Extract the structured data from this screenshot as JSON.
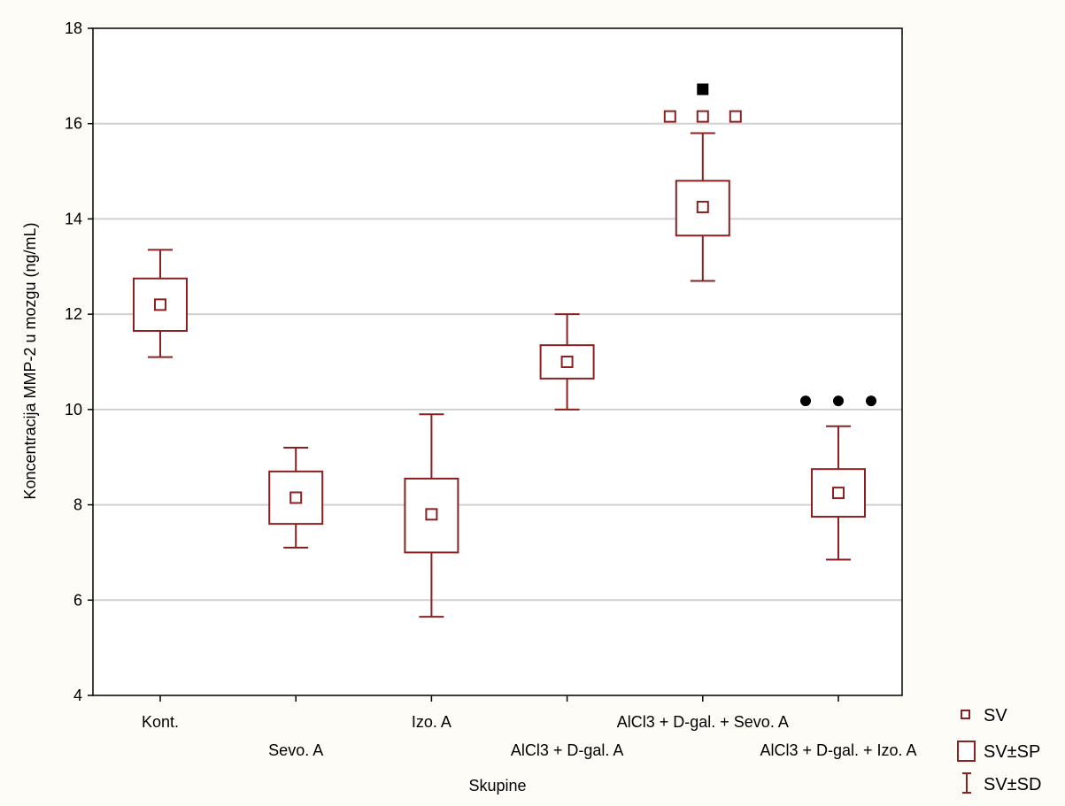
{
  "chart_data": {
    "type": "box",
    "xlabel": "Skupine",
    "ylabel": "Koncentracija MMP-2 u mozgu (ng/mL)",
    "ylim": [
      4,
      18
    ],
    "yticks": [
      4,
      6,
      8,
      10,
      12,
      14,
      16,
      18
    ],
    "grid": true,
    "categories": [
      "Kont.",
      "Sevo. A",
      "Izo. A",
      "AlCl3 + D-gal. A",
      "AlCl3 + D-gal. + Sevo. A",
      "AlCl3 + D-gal. + Izo. A"
    ],
    "mean": [
      12.2,
      8.15,
      7.8,
      11.0,
      14.25,
      8.25
    ],
    "sp_low": [
      11.65,
      7.6,
      7.0,
      10.65,
      13.65,
      7.75
    ],
    "sp_high": [
      12.75,
      8.7,
      8.55,
      11.35,
      14.8,
      8.75
    ],
    "sd_low": [
      11.1,
      7.1,
      5.65,
      10.0,
      12.7,
      6.85
    ],
    "sd_high": [
      13.35,
      9.2,
      9.9,
      12.0,
      15.8,
      9.65
    ],
    "significance_markers": [
      {
        "category_index": 4,
        "symbol": "open-square",
        "count": 3,
        "y": 16.15,
        "color": "#8b2020"
      },
      {
        "category_index": 4,
        "symbol": "filled-square",
        "count": 1,
        "y": 16.72,
        "color": "#000000"
      },
      {
        "category_index": 5,
        "symbol": "filled-circle",
        "count": 3,
        "y": 10.18,
        "color": "#000000"
      }
    ],
    "legend": {
      "position": "bottom-right",
      "items": [
        {
          "symbol": "small-square",
          "label": "SV"
        },
        {
          "symbol": "box",
          "label": "SV±SP"
        },
        {
          "symbol": "whisker",
          "label": "SV±SD"
        }
      ]
    },
    "colors": {
      "series": "#8b2020",
      "grid": "#d0d0d0",
      "axis": "#000000"
    }
  }
}
